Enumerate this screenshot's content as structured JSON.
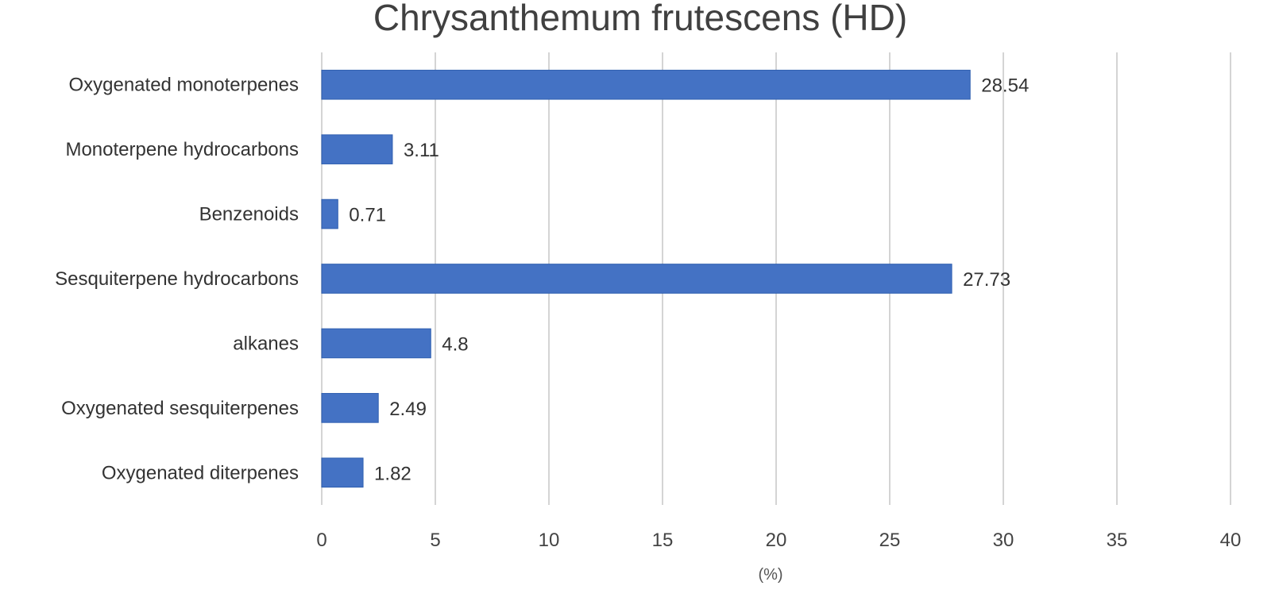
{
  "chart_data": {
    "type": "bar",
    "orientation": "horizontal",
    "title": "Chrysanthemum frutescens (HD)",
    "xlabel": "(%)",
    "ylabel": "",
    "xlim": [
      0,
      40
    ],
    "x_ticks": [
      "0",
      "5",
      "10",
      "15",
      "20",
      "25",
      "30",
      "35",
      "40"
    ],
    "categories": [
      "Oxygenated monoterpenes",
      "Monoterpene hydrocarbons",
      "Benzenoids",
      "Sesquiterpene hydrocarbons",
      "alkanes",
      "Oxygenated sesquiterpenes",
      "Oxygenated diterpenes"
    ],
    "values": [
      28.54,
      3.11,
      0.71,
      27.73,
      4.8,
      2.49,
      1.82
    ],
    "value_labels": [
      "28.54",
      "3.11",
      "0.71",
      "27.73",
      "4.8",
      "2.49",
      "1.82"
    ],
    "bar_color": "#4472c4",
    "grid": true,
    "legend": "none"
  }
}
